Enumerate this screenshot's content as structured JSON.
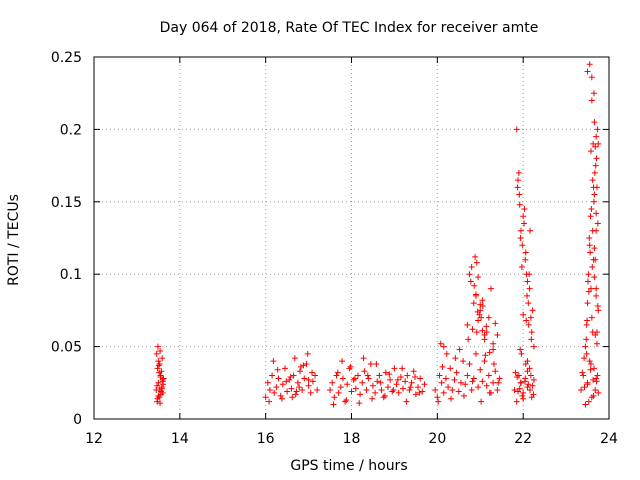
{
  "chart_data": {
    "type": "scatter",
    "title": "Day 064 of 2018, Rate Of TEC Index for receiver amte",
    "xlabel": "GPS time / hours",
    "ylabel": "ROTI / TECUs",
    "xlim": [
      12,
      24
    ],
    "ylim": [
      0,
      0.25
    ],
    "x_ticks": [
      12,
      14,
      16,
      18,
      20,
      22,
      24
    ],
    "x_tick_labels": [
      "12",
      "14",
      "16",
      "18",
      "20",
      "22",
      "24"
    ],
    "y_ticks": [
      0,
      0.05,
      0.1,
      0.15,
      0.2,
      0.25
    ],
    "y_tick_labels": [
      "0",
      "0.05",
      "0.1",
      "0.15",
      "0.2",
      "0.25"
    ],
    "grid": true,
    "marker": "+",
    "series": [
      {
        "name": "ROTI",
        "color": "#ff0000",
        "x": [
          13.45,
          13.48,
          13.5,
          13.52,
          13.55,
          13.58,
          13.6,
          13.62,
          13.46,
          13.5,
          13.53,
          13.57,
          13.6,
          13.47,
          13.52,
          13.56,
          13.61,
          13.49,
          13.54,
          13.59,
          13.5,
          13.55,
          13.58,
          13.48,
          13.52,
          13.56,
          13.6,
          13.47,
          13.51,
          13.54,
          16.0,
          16.05,
          16.1,
          16.15,
          16.2,
          16.25,
          16.3,
          16.35,
          16.4,
          16.45,
          16.5,
          16.55,
          16.6,
          16.65,
          16.7,
          16.75,
          16.8,
          16.85,
          16.9,
          16.95,
          17.0,
          17.05,
          17.1,
          17.15,
          17.2,
          16.08,
          16.18,
          16.28,
          16.38,
          16.48,
          16.58,
          16.68,
          16.78,
          16.88,
          16.98,
          17.08,
          16.62,
          16.72,
          16.82,
          17.0,
          17.5,
          17.55,
          17.6,
          17.65,
          17.7,
          17.75,
          17.8,
          17.85,
          17.9,
          17.95,
          18.0,
          18.05,
          18.1,
          18.15,
          18.2,
          18.25,
          18.3,
          18.35,
          18.4,
          18.45,
          18.5,
          18.55,
          18.6,
          18.65,
          18.7,
          18.75,
          18.8,
          18.85,
          18.9,
          18.95,
          19.0,
          19.05,
          19.1,
          19.15,
          19.2,
          19.25,
          19.3,
          19.35,
          19.4,
          19.45,
          19.5,
          19.55,
          19.6,
          19.65,
          19.7,
          17.58,
          17.68,
          17.78,
          17.88,
          17.98,
          18.08,
          18.18,
          18.28,
          18.38,
          18.48,
          18.58,
          18.68,
          18.78,
          18.88,
          18.98,
          19.08,
          19.18,
          19.28,
          19.38,
          19.48,
          19.58,
          19.95,
          20.0,
          20.05,
          20.1,
          20.15,
          20.2,
          20.25,
          20.3,
          20.35,
          20.4,
          20.45,
          20.5,
          20.55,
          20.6,
          20.65,
          20.7,
          20.75,
          20.8,
          20.85,
          20.9,
          20.95,
          21.0,
          21.05,
          21.1,
          21.15,
          21.2,
          21.25,
          21.3,
          21.35,
          21.4,
          21.45,
          20.02,
          20.12,
          20.22,
          20.32,
          20.42,
          20.52,
          20.62,
          20.72,
          20.82,
          20.92,
          21.02,
          21.12,
          21.22,
          21.32,
          21.42,
          20.08,
          20.15,
          20.7,
          20.75,
          20.8,
          20.78,
          20.85,
          20.88,
          20.92,
          20.95,
          21.0,
          21.05,
          21.1,
          21.15,
          21.2,
          21.25,
          21.3,
          21.35,
          21.4,
          20.82,
          20.9,
          20.98,
          21.06,
          21.14,
          21.22,
          21.3,
          20.86,
          20.94,
          21.02,
          21.1,
          20.9,
          20.95,
          21.0,
          21.05,
          21.8,
          21.85,
          21.9,
          21.95,
          22.0,
          22.05,
          22.1,
          22.15,
          22.2,
          22.25,
          21.82,
          21.88,
          21.94,
          22.0,
          22.06,
          22.12,
          22.18,
          22.24,
          21.86,
          21.92,
          21.98,
          22.04,
          22.1,
          22.16,
          22.22,
          21.85,
          21.88,
          21.9,
          21.92,
          21.95,
          21.98,
          22.0,
          22.02,
          22.05,
          22.08,
          22.1,
          22.12,
          22.15,
          22.18,
          22.2,
          22.22,
          22.25,
          21.87,
          21.91,
          21.94,
          21.97,
          22.03,
          22.06,
          22.09,
          22.13,
          22.16,
          22.19,
          21.93,
          22.0,
          22.07,
          22.14,
          21.96,
          22.1,
          23.35,
          23.4,
          23.45,
          23.5,
          23.55,
          23.6,
          23.65,
          23.7,
          23.75,
          23.38,
          23.43,
          23.48,
          23.53,
          23.58,
          23.63,
          23.68,
          23.73,
          23.42,
          23.5,
          23.57,
          23.64,
          23.71,
          23.45,
          23.48,
          23.5,
          23.52,
          23.55,
          23.58,
          23.6,
          23.62,
          23.65,
          23.68,
          23.7,
          23.72,
          23.75,
          23.47,
          23.51,
          23.54,
          23.57,
          23.61,
          23.64,
          23.67,
          23.71,
          23.74,
          23.49,
          23.53,
          23.56,
          23.59,
          23.63,
          23.66,
          23.69,
          23.73,
          23.5,
          23.55,
          23.6,
          23.65,
          23.7,
          23.58,
          23.62,
          23.66,
          23.7,
          23.74,
          23.64,
          23.68,
          23.72,
          23.6,
          23.66,
          23.7,
          23.75,
          23.62,
          23.68,
          23.72,
          23.66,
          23.7
        ],
        "y": [
          0.02,
          0.035,
          0.025,
          0.015,
          0.03,
          0.022,
          0.018,
          0.028,
          0.045,
          0.04,
          0.038,
          0.033,
          0.026,
          0.012,
          0.02,
          0.017,
          0.024,
          0.05,
          0.047,
          0.042,
          0.016,
          0.029,
          0.021,
          0.014,
          0.032,
          0.019,
          0.027,
          0.023,
          0.037,
          0.011,
          0.015,
          0.025,
          0.02,
          0.03,
          0.018,
          0.022,
          0.028,
          0.016,
          0.024,
          0.035,
          0.019,
          0.027,
          0.021,
          0.03,
          0.017,
          0.025,
          0.033,
          0.02,
          0.028,
          0.038,
          0.023,
          0.018,
          0.026,
          0.03,
          0.02,
          0.012,
          0.04,
          0.034,
          0.014,
          0.026,
          0.029,
          0.042,
          0.022,
          0.037,
          0.045,
          0.032,
          0.015,
          0.019,
          0.036,
          0.027,
          0.02,
          0.025,
          0.015,
          0.03,
          0.018,
          0.022,
          0.028,
          0.012,
          0.024,
          0.035,
          0.019,
          0.027,
          0.021,
          0.03,
          0.017,
          0.025,
          0.033,
          0.02,
          0.028,
          0.038,
          0.023,
          0.018,
          0.026,
          0.03,
          0.02,
          0.015,
          0.032,
          0.022,
          0.027,
          0.019,
          0.035,
          0.024,
          0.018,
          0.029,
          0.021,
          0.026,
          0.03,
          0.02,
          0.025,
          0.033,
          0.017,
          0.022,
          0.028,
          0.019,
          0.024,
          0.01,
          0.032,
          0.04,
          0.013,
          0.036,
          0.028,
          0.011,
          0.042,
          0.03,
          0.014,
          0.038,
          0.025,
          0.016,
          0.031,
          0.02,
          0.027,
          0.035,
          0.012,
          0.022,
          0.029,
          0.018,
          0.02,
          0.015,
          0.03,
          0.025,
          0.018,
          0.028,
          0.022,
          0.035,
          0.02,
          0.027,
          0.032,
          0.019,
          0.025,
          0.04,
          0.024,
          0.03,
          0.038,
          0.02,
          0.028,
          0.045,
          0.022,
          0.034,
          0.026,
          0.04,
          0.023,
          0.03,
          0.018,
          0.025,
          0.033,
          0.02,
          0.028,
          0.012,
          0.036,
          0.045,
          0.014,
          0.042,
          0.048,
          0.016,
          0.055,
          0.026,
          0.06,
          0.012,
          0.044,
          0.018,
          0.038,
          0.025,
          0.052,
          0.05,
          0.065,
          0.1,
          0.105,
          0.095,
          0.08,
          0.112,
          0.108,
          0.068,
          0.075,
          0.082,
          0.055,
          0.06,
          0.07,
          0.09,
          0.048,
          0.066,
          0.058,
          0.062,
          0.085,
          0.072,
          0.078,
          0.064,
          0.046,
          0.052,
          0.092,
          0.074,
          0.07,
          0.058,
          0.086,
          0.098,
          0.079,
          0.061,
          0.02,
          0.012,
          0.03,
          0.025,
          0.018,
          0.028,
          0.022,
          0.035,
          0.015,
          0.027,
          0.032,
          0.019,
          0.025,
          0.014,
          0.038,
          0.024,
          0.03,
          0.017,
          0.029,
          0.021,
          0.016,
          0.026,
          0.033,
          0.02,
          0.023,
          0.2,
          0.165,
          0.17,
          0.148,
          0.13,
          0.12,
          0.14,
          0.135,
          0.11,
          0.1,
          0.095,
          0.08,
          0.09,
          0.07,
          0.06,
          0.075,
          0.05,
          0.16,
          0.155,
          0.125,
          0.105,
          0.145,
          0.115,
          0.085,
          0.065,
          0.13,
          0.055,
          0.048,
          0.072,
          0.068,
          0.1,
          0.045,
          0.04,
          0.02,
          0.03,
          0.01,
          0.025,
          0.04,
          0.015,
          0.035,
          0.028,
          0.018,
          0.032,
          0.022,
          0.045,
          0.012,
          0.038,
          0.027,
          0.02,
          0.03,
          0.042,
          0.024,
          0.034,
          0.016,
          0.026,
          0.05,
          0.065,
          0.08,
          0.1,
          0.12,
          0.09,
          0.07,
          0.13,
          0.15,
          0.11,
          0.085,
          0.06,
          0.075,
          0.055,
          0.095,
          0.125,
          0.14,
          0.105,
          0.16,
          0.17,
          0.18,
          0.135,
          0.068,
          0.088,
          0.115,
          0.145,
          0.19,
          0.155,
          0.175,
          0.2,
          0.24,
          0.245,
          0.22,
          0.225,
          0.195,
          0.185,
          0.165,
          0.098,
          0.13,
          0.078,
          0.11,
          0.188,
          0.16,
          0.236,
          0.205,
          0.142,
          0.19,
          0.06,
          0.058,
          0.052,
          0.118,
          0.09
        ]
      }
    ]
  }
}
